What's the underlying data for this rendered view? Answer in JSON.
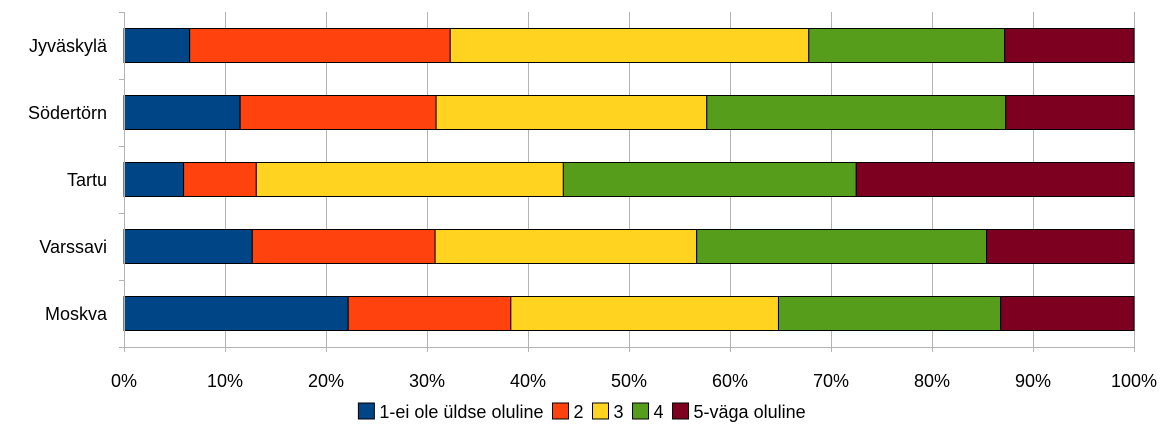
{
  "chart_data": {
    "type": "bar",
    "orientation": "horizontal",
    "stacked": "percent",
    "categories": [
      "Jyväskylä",
      "Södertörn",
      "Tartu",
      "Varssavi",
      "Moskva"
    ],
    "series": [
      {
        "name": "1-ei ole üldse oluline",
        "color": "#004586",
        "values": [
          6.5,
          11.5,
          5.9,
          12.7,
          22.2
        ]
      },
      {
        "name": "2",
        "color": "#ff420e",
        "values": [
          25.8,
          19.4,
          7.2,
          18.1,
          16.1
        ]
      },
      {
        "name": "3",
        "color": "#ffd320",
        "values": [
          35.5,
          26.8,
          30.4,
          25.9,
          26.5
        ]
      },
      {
        "name": "4",
        "color": "#579d1c",
        "values": [
          19.4,
          29.6,
          29.0,
          28.7,
          22.0
        ]
      },
      {
        "name": "5-väga oluline",
        "color": "#7e0021",
        "values": [
          12.8,
          12.7,
          27.5,
          14.6,
          13.2
        ]
      }
    ],
    "x_ticks": [
      "0%",
      "10%",
      "20%",
      "30%",
      "40%",
      "50%",
      "60%",
      "70%",
      "80%",
      "90%",
      "100%"
    ],
    "xlim": [
      0,
      100
    ],
    "grid": true,
    "legend_position": "bottom"
  }
}
